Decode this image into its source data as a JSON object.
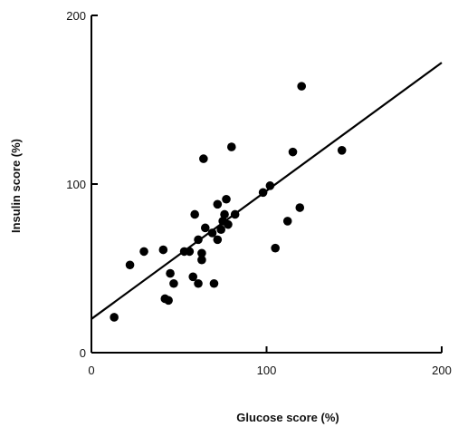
{
  "chart_data": {
    "type": "scatter",
    "title": "",
    "xlabel": "Glucose score (%)",
    "ylabel": "Insulin score (%)",
    "xlim": [
      0,
      200
    ],
    "ylim": [
      0,
      200
    ],
    "xticks": [
      0,
      100,
      200
    ],
    "yticks": [
      0,
      100,
      200
    ],
    "grid": false,
    "points": [
      {
        "x": 13,
        "y": 21
      },
      {
        "x": 22,
        "y": 52
      },
      {
        "x": 30,
        "y": 60
      },
      {
        "x": 41,
        "y": 61
      },
      {
        "x": 42,
        "y": 32
      },
      {
        "x": 44,
        "y": 31
      },
      {
        "x": 45,
        "y": 47
      },
      {
        "x": 47,
        "y": 41
      },
      {
        "x": 53,
        "y": 60
      },
      {
        "x": 56,
        "y": 60
      },
      {
        "x": 58,
        "y": 45
      },
      {
        "x": 59,
        "y": 82
      },
      {
        "x": 61,
        "y": 41
      },
      {
        "x": 61,
        "y": 67
      },
      {
        "x": 63,
        "y": 55
      },
      {
        "x": 63,
        "y": 59
      },
      {
        "x": 64,
        "y": 115
      },
      {
        "x": 65,
        "y": 74
      },
      {
        "x": 69,
        "y": 71
      },
      {
        "x": 70,
        "y": 41
      },
      {
        "x": 72,
        "y": 88
      },
      {
        "x": 72,
        "y": 67
      },
      {
        "x": 74,
        "y": 73
      },
      {
        "x": 75,
        "y": 78
      },
      {
        "x": 76,
        "y": 82
      },
      {
        "x": 77,
        "y": 91
      },
      {
        "x": 78,
        "y": 76
      },
      {
        "x": 80,
        "y": 122
      },
      {
        "x": 82,
        "y": 82
      },
      {
        "x": 98,
        "y": 95
      },
      {
        "x": 102,
        "y": 99
      },
      {
        "x": 105,
        "y": 62
      },
      {
        "x": 112,
        "y": 78
      },
      {
        "x": 115,
        "y": 119
      },
      {
        "x": 119,
        "y": 86
      },
      {
        "x": 120,
        "y": 158
      },
      {
        "x": 143,
        "y": 120
      }
    ],
    "regression_line": {
      "x": [
        0,
        200
      ],
      "y": [
        20,
        172
      ]
    },
    "marker_color": "#000000",
    "line_color": "#000000"
  }
}
